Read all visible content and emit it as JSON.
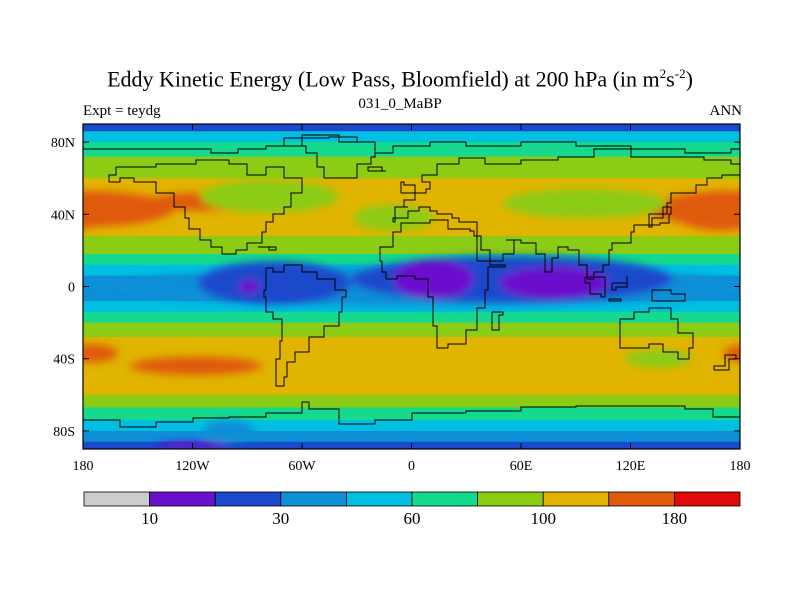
{
  "header": {
    "title_main": "Eddy Kinetic Energy (Low Pass, Bloomfield) at 200 hPa (in m",
    "title_sup1": "2",
    "title_mid": "s",
    "title_sup2": "-2",
    "title_end": ")",
    "subtitle": "031_0_MaBP",
    "left_label": "Expt = teydg",
    "right_label": "ANN"
  },
  "chart_data": {
    "type": "heatmap",
    "projection": "cylindrical-equidistant",
    "title": "Eddy Kinetic Energy (Low Pass, Bloomfield) at 200 hPa (in m^2s^-2)",
    "subtitle": "031_0_MaBP",
    "xlim": [
      -180,
      180
    ],
    "ylim": [
      -90,
      90
    ],
    "x_ticks": [
      {
        "value": -180,
        "label": "180"
      },
      {
        "value": -120,
        "label": "120W"
      },
      {
        "value": -60,
        "label": "60W"
      },
      {
        "value": 0,
        "label": "0"
      },
      {
        "value": 60,
        "label": "60E"
      },
      {
        "value": 120,
        "label": "120E"
      },
      {
        "value": 180,
        "label": "180"
      }
    ],
    "y_ticks": [
      {
        "value": 80,
        "label": "80N"
      },
      {
        "value": 40,
        "label": "40N"
      },
      {
        "value": 0,
        "label": "0"
      },
      {
        "value": -40,
        "label": "40S"
      },
      {
        "value": -80,
        "label": "80S"
      }
    ],
    "levels_colors": [
      "#cccccc",
      "#6a11cc",
      "#1a49cc",
      "#0e8fd6",
      "#00bfe0",
      "#14d98e",
      "#8ccc14",
      "#e0b400",
      "#e05a0a",
      "#e00a0a"
    ],
    "colorbar_labels": [
      {
        "value": 10,
        "label": "10",
        "after_box": 1
      },
      {
        "value": 30,
        "label": "30",
        "after_box": 3
      },
      {
        "value": 60,
        "label": "60",
        "after_box": 5
      },
      {
        "value": 100,
        "label": "100",
        "after_box": 7
      },
      {
        "value": 180,
        "label": "180",
        "after_box": 9
      }
    ],
    "zonal_bands": [
      {
        "lat_top": 90,
        "lat_bottom": 86,
        "color": "#1a49cc"
      },
      {
        "lat_top": 86,
        "lat_bottom": 80,
        "color": "#00bfe0"
      },
      {
        "lat_top": 80,
        "lat_bottom": 72,
        "color": "#14d98e"
      },
      {
        "lat_top": 72,
        "lat_bottom": 60,
        "color": "#8ccc14"
      },
      {
        "lat_top": 60,
        "lat_bottom": 28,
        "color": "#e0b400"
      },
      {
        "lat_top": 28,
        "lat_bottom": 18,
        "color": "#8ccc14"
      },
      {
        "lat_top": 18,
        "lat_bottom": 12,
        "color": "#14d98e"
      },
      {
        "lat_top": 12,
        "lat_bottom": 6,
        "color": "#00bfe0"
      },
      {
        "lat_top": 6,
        "lat_bottom": -8,
        "color": "#0e8fd6"
      },
      {
        "lat_top": -8,
        "lat_bottom": -14,
        "color": "#00bfe0"
      },
      {
        "lat_top": -14,
        "lat_bottom": -20,
        "color": "#14d98e"
      },
      {
        "lat_top": -20,
        "lat_bottom": -28,
        "color": "#8ccc14"
      },
      {
        "lat_top": -28,
        "lat_bottom": -60,
        "color": "#e0b400"
      },
      {
        "lat_top": -60,
        "lat_bottom": -67,
        "color": "#8ccc14"
      },
      {
        "lat_top": -67,
        "lat_bottom": -74,
        "color": "#14d98e"
      },
      {
        "lat_top": -74,
        "lat_bottom": -80,
        "color": "#00bfe0"
      },
      {
        "lat_top": -80,
        "lat_bottom": -86,
        "color": "#0e8fd6"
      },
      {
        "lat_top": -86,
        "lat_bottom": -90,
        "color": "#1a49cc"
      }
    ],
    "features": [
      {
        "lon": -180,
        "lat": 43,
        "rx": 50,
        "ry": 10,
        "color": "#e05a0a"
      },
      {
        "lon": -115,
        "lat": 47,
        "rx": 30,
        "ry": 5,
        "color": "#e05a0a"
      },
      {
        "lon": 170,
        "lat": 42,
        "rx": 28,
        "ry": 11,
        "color": "#e05a0a"
      },
      {
        "lon": -175,
        "lat": -37,
        "rx": 14,
        "ry": 5,
        "color": "#e05a0a"
      },
      {
        "lon": -118,
        "lat": -44,
        "rx": 36,
        "ry": 5,
        "color": "#e05a0a"
      },
      {
        "lon": -78,
        "lat": 50,
        "rx": 38,
        "ry": 9,
        "color": "#8ccc14"
      },
      {
        "lon": -10,
        "lat": 38,
        "rx": 22,
        "ry": 7,
        "color": "#8ccc14"
      },
      {
        "lon": 95,
        "lat": 46,
        "rx": 45,
        "ry": 8,
        "color": "#8ccc14"
      },
      {
        "lon": 135,
        "lat": -40,
        "rx": 18,
        "ry": 5,
        "color": "#8ccc14"
      },
      {
        "lon": 10,
        "lat": 0,
        "rx": 175,
        "ry": 11,
        "color": "#0e8fd6"
      },
      {
        "lon": -75,
        "lat": 2,
        "rx": 42,
        "ry": 12,
        "color": "#1a49cc"
      },
      {
        "lon": 55,
        "lat": 4,
        "rx": 88,
        "ry": 13,
        "color": "#1a49cc"
      },
      {
        "lon": -89,
        "lat": 0,
        "rx": 6,
        "ry": 4,
        "color": "#6a11cc"
      },
      {
        "lon": 12,
        "lat": 4,
        "rx": 22,
        "ry": 11,
        "color": "#6a11cc"
      },
      {
        "lon": 78,
        "lat": 2,
        "rx": 30,
        "ry": 9,
        "color": "#6a11cc"
      },
      {
        "lon": -100,
        "lat": -80,
        "rx": 14,
        "ry": 6,
        "color": "#0e8fd6"
      },
      {
        "lon": -120,
        "lat": -88,
        "rx": 20,
        "ry": 2,
        "color": "#6a11cc"
      }
    ],
    "coastlines": [
      [
        [
          -180,
          76
        ],
        [
          -150,
          76
        ],
        [
          -120,
          76
        ],
        [
          -110,
          74
        ],
        [
          -95,
          76
        ],
        [
          -80,
          78
        ],
        [
          -60,
          82
        ],
        [
          -45,
          83
        ],
        [
          -30,
          80
        ],
        [
          -20,
          74
        ],
        [
          -10,
          78
        ],
        [
          10,
          80
        ],
        [
          30,
          78
        ],
        [
          60,
          80
        ],
        [
          90,
          78
        ],
        [
          120,
          76
        ],
        [
          150,
          74
        ],
        [
          175,
          76
        ],
        [
          180,
          74
        ]
      ],
      [
        [
          -162,
          66
        ],
        [
          -140,
          68
        ],
        [
          -118,
          70
        ],
        [
          -100,
          68
        ],
        [
          -90,
          62
        ],
        [
          -80,
          66
        ],
        [
          -70,
          60
        ],
        [
          -60,
          52
        ],
        [
          -66,
          44
        ],
        [
          -70,
          40
        ],
        [
          -76,
          36
        ],
        [
          -80,
          30
        ],
        [
          -82,
          24
        ],
        [
          -90,
          20
        ],
        [
          -96,
          18
        ],
        [
          -104,
          22
        ],
        [
          -110,
          26
        ],
        [
          -116,
          32
        ],
        [
          -122,
          38
        ],
        [
          -124,
          44
        ],
        [
          -130,
          52
        ],
        [
          -140,
          58
        ],
        [
          -152,
          60
        ],
        [
          -160,
          58
        ],
        [
          -166,
          62
        ],
        [
          -162,
          66
        ]
      ],
      [
        [
          -80,
          10
        ],
        [
          -76,
          8
        ],
        [
          -70,
          12
        ],
        [
          -60,
          8
        ],
        [
          -52,
          4
        ],
        [
          -42,
          -2
        ],
        [
          -36,
          -6
        ],
        [
          -38,
          -14
        ],
        [
          -40,
          -22
        ],
        [
          -48,
          -28
        ],
        [
          -56,
          -36
        ],
        [
          -64,
          -42
        ],
        [
          -68,
          -50
        ],
        [
          -70,
          -55
        ],
        [
          -74,
          -50
        ],
        [
          -74,
          -40
        ],
        [
          -72,
          -30
        ],
        [
          -71,
          -18
        ],
        [
          -76,
          -14
        ],
        [
          -80,
          -6
        ],
        [
          -81,
          -2
        ],
        [
          -80,
          10
        ]
      ],
      [
        [
          -16,
          14
        ],
        [
          -17,
          22
        ],
        [
          -10,
          30
        ],
        [
          -6,
          35
        ],
        [
          10,
          37
        ],
        [
          20,
          32
        ],
        [
          32,
          31
        ],
        [
          34,
          28
        ],
        [
          38,
          20
        ],
        [
          43,
          12
        ],
        [
          51,
          11
        ],
        [
          42,
          -2
        ],
        [
          40,
          -12
        ],
        [
          36,
          -24
        ],
        [
          30,
          -32
        ],
        [
          20,
          -34
        ],
        [
          14,
          -22
        ],
        [
          12,
          -6
        ],
        [
          9,
          4
        ],
        [
          2,
          6
        ],
        [
          -8,
          4
        ],
        [
          -14,
          8
        ],
        [
          -16,
          14
        ]
      ],
      [
        [
          -10,
          36
        ],
        [
          -9,
          44
        ],
        [
          -2,
          44
        ],
        [
          -4,
          48
        ],
        [
          2,
          52
        ],
        [
          8,
          54
        ],
        [
          10,
          58
        ],
        [
          6,
          62
        ],
        [
          14,
          68
        ],
        [
          26,
          71
        ],
        [
          40,
          68
        ],
        [
          60,
          70
        ],
        [
          80,
          72
        ],
        [
          100,
          76
        ],
        [
          120,
          72
        ],
        [
          140,
          72
        ],
        [
          160,
          70
        ],
        [
          175,
          68
        ],
        [
          180,
          66
        ]
      ],
      [
        [
          180,
          62
        ],
        [
          170,
          60
        ],
        [
          162,
          56
        ],
        [
          156,
          52
        ],
        [
          142,
          46
        ],
        [
          140,
          40
        ],
        [
          130,
          34
        ],
        [
          122,
          30
        ],
        [
          120,
          24
        ],
        [
          110,
          20
        ],
        [
          108,
          12
        ],
        [
          105,
          8
        ],
        [
          100,
          4
        ],
        [
          96,
          12
        ],
        [
          92,
          20
        ],
        [
          86,
          22
        ],
        [
          80,
          16
        ],
        [
          77,
          8
        ],
        [
          73,
          18
        ],
        [
          68,
          24
        ],
        [
          60,
          26
        ],
        [
          52,
          26
        ],
        [
          56,
          18
        ],
        [
          50,
          14
        ],
        [
          44,
          14
        ],
        [
          36,
          28
        ],
        [
          36,
          36
        ],
        [
          26,
          38
        ],
        [
          22,
          40
        ],
        [
          14,
          42
        ],
        [
          10,
          44
        ],
        [
          4,
          42
        ],
        [
          -2,
          38
        ],
        [
          -10,
          36
        ]
      ],
      [
        [
          114,
          -22
        ],
        [
          114,
          -34
        ],
        [
          122,
          -34
        ],
        [
          130,
          -32
        ],
        [
          138,
          -36
        ],
        [
          146,
          -40
        ],
        [
          152,
          -34
        ],
        [
          154,
          -26
        ],
        [
          146,
          -18
        ],
        [
          142,
          -12
        ],
        [
          136,
          -12
        ],
        [
          130,
          -14
        ],
        [
          122,
          -18
        ],
        [
          114,
          -22
        ]
      ],
      [
        [
          -48,
          60
        ],
        [
          -42,
          60
        ],
        [
          -30,
          68
        ],
        [
          -22,
          72
        ],
        [
          -20,
          80
        ],
        [
          -40,
          84
        ],
        [
          -60,
          82
        ],
        [
          -70,
          78
        ],
        [
          -58,
          74
        ],
        [
          -52,
          66
        ],
        [
          -48,
          60
        ]
      ],
      [
        [
          -180,
          -74
        ],
        [
          -160,
          -78
        ],
        [
          -140,
          -75
        ],
        [
          -120,
          -73
        ],
        [
          -100,
          -72
        ],
        [
          -80,
          -70
        ],
        [
          -60,
          -64
        ],
        [
          -56,
          -68
        ],
        [
          -40,
          -76
        ],
        [
          -20,
          -74
        ],
        [
          0,
          -70
        ],
        [
          30,
          -69
        ],
        [
          60,
          -67
        ],
        [
          90,
          -66
        ],
        [
          120,
          -66
        ],
        [
          150,
          -68
        ],
        [
          165,
          -72
        ],
        [
          180,
          -74
        ]
      ],
      [
        [
          44,
          -14
        ],
        [
          50,
          -16
        ],
        [
          48,
          -24
        ],
        [
          44,
          -24
        ],
        [
          44,
          -14
        ]
      ],
      [
        [
          130,
          34
        ],
        [
          136,
          35
        ],
        [
          141,
          40
        ],
        [
          142,
          44
        ],
        [
          138,
          38
        ],
        [
          132,
          33
        ],
        [
          130,
          34
        ]
      ],
      [
        [
          95,
          5
        ],
        [
          106,
          -6
        ],
        [
          104,
          -4
        ],
        [
          98,
          2
        ],
        [
          95,
          5
        ]
      ],
      [
        [
          108,
          -7
        ],
        [
          115,
          -8
        ],
        [
          112,
          -8
        ],
        [
          108,
          -7
        ]
      ],
      [
        [
          110,
          2
        ],
        [
          118,
          6
        ],
        [
          118,
          0
        ],
        [
          112,
          -2
        ],
        [
          110,
          2
        ]
      ],
      [
        [
          -6,
          52
        ],
        [
          0,
          52
        ],
        [
          2,
          56
        ],
        [
          -4,
          58
        ],
        [
          -6,
          54
        ],
        [
          -6,
          52
        ]
      ],
      [
        [
          -24,
          64
        ],
        [
          -14,
          64
        ],
        [
          -16,
          66
        ],
        [
          -22,
          66
        ],
        [
          -24,
          64
        ]
      ],
      [
        [
          132,
          -2
        ],
        [
          142,
          -4
        ],
        [
          150,
          -8
        ],
        [
          140,
          -8
        ],
        [
          132,
          -2
        ]
      ],
      [
        [
          166,
          -46
        ],
        [
          174,
          -40
        ],
        [
          178,
          -38
        ],
        [
          172,
          -44
        ],
        [
          166,
          -46
        ]
      ],
      [
        [
          -84,
          22
        ],
        [
          -74,
          20
        ],
        [
          -78,
          22
        ],
        [
          -84,
          22
        ]
      ]
    ]
  }
}
